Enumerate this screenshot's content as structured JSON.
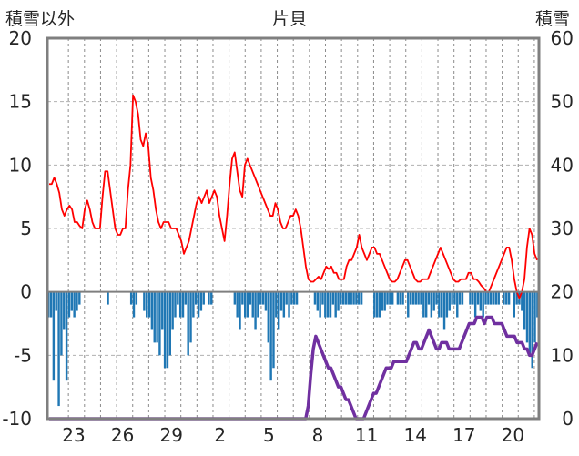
{
  "chart_data": {
    "type": "line",
    "title": "片貝",
    "left_axis_title": "積雪以外",
    "right_axis_title": "積雪",
    "left_ylim": [
      -10,
      20
    ],
    "left_ticks": [
      "-10",
      "-5",
      "0",
      "5",
      "10",
      "15",
      "20"
    ],
    "right_ylim": [
      0,
      60
    ],
    "right_ticks": [
      "0",
      "10",
      "20",
      "30",
      "40",
      "50",
      "60"
    ],
    "x_ticks": [
      "23",
      "26",
      "29",
      "2",
      "5",
      "8",
      "11",
      "14",
      "17",
      "20"
    ],
    "grid": "vertical dashed lines",
    "colors": {
      "temperature": "#ff0000",
      "precipitation": "#1f77b4",
      "snow": "#7030a0",
      "frame": "#7f7f7f"
    },
    "series": [
      {
        "kind": "line",
        "axis": "left",
        "color": "#ff0000",
        "values": [
          8.5,
          8.5,
          9,
          8.5,
          7.8,
          6.5,
          6.0,
          6.5,
          6.8,
          6.5,
          5.5,
          5.5,
          5.2,
          5.0,
          6.5,
          7.2,
          6.5,
          5.5,
          5.0,
          5.0,
          5.0,
          7.5,
          9.5,
          9.5,
          8.0,
          6.5,
          5.0,
          4.5,
          4.5,
          5.0,
          5.0,
          8.0,
          10.0,
          15.5,
          15.0,
          14.0,
          12.0,
          11.5,
          12.5,
          11.5,
          9.0,
          8.0,
          6.5,
          5.5,
          5.0,
          5.5,
          5.5,
          5.5,
          5.0,
          5.0,
          5.0,
          4.5,
          4.0,
          3.0,
          3.5,
          4.0,
          5.0,
          6.0,
          7.0,
          7.5,
          7.0,
          7.5,
          8.0,
          7.0,
          7.5,
          8.0,
          7.5,
          6.0,
          5.0,
          4.0,
          6.0,
          8.5,
          10.5,
          11.0,
          9.5,
          8.0,
          7.5,
          10.0,
          10.5,
          10.0,
          9.5,
          9.0,
          8.5,
          8.0,
          7.5,
          7.0,
          6.5,
          6.0,
          6.0,
          7.0,
          6.5,
          5.5,
          5.0,
          5.0,
          5.5,
          6.0,
          6.0,
          6.5,
          6.0,
          5.0,
          3.5,
          2.0,
          1.0,
          0.8,
          0.8,
          1.0,
          1.2,
          1.0,
          1.5,
          2.0,
          1.8,
          2.0,
          1.5,
          1.5,
          1.0,
          1.0,
          1.0,
          2.0,
          2.5,
          2.5,
          3.0,
          3.5,
          4.5,
          3.5,
          3.0,
          2.5,
          3.0,
          3.5,
          3.5,
          3.0,
          3.0,
          2.5,
          2.0,
          1.5,
          1.0,
          0.8,
          0.8,
          1.0,
          1.5,
          2.0,
          2.5,
          2.5,
          2.0,
          1.5,
          1.0,
          0.8,
          0.8,
          1.0,
          1.0,
          1.0,
          1.5,
          2.0,
          2.5,
          3.0,
          3.5,
          3.0,
          2.5,
          2.0,
          1.5,
          1.0,
          0.8,
          0.8,
          1.0,
          1.0,
          1.0,
          1.5,
          1.5,
          1.0,
          1.0,
          0.8,
          0.5,
          0.3,
          0.0,
          0.0,
          0.5,
          1.0,
          1.5,
          2.0,
          2.5,
          3.0,
          3.5,
          3.5,
          2.5,
          1.0,
          0.0,
          -0.5,
          0.0,
          1.0,
          3.5,
          5.0,
          4.5,
          3.0,
          2.5
        ]
      },
      {
        "kind": "bar",
        "axis": "left",
        "color": "#1f77b4",
        "values": [
          -2,
          -2,
          -7,
          -1.5,
          -9,
          -5,
          -3,
          -7,
          -2,
          -1.5,
          -2,
          -1.5,
          -1,
          0,
          0,
          0,
          0,
          0,
          0,
          0,
          0,
          0,
          0,
          -1,
          0,
          0,
          0,
          0,
          0,
          0,
          0,
          0,
          -1,
          -2,
          -1,
          0,
          0,
          -1.5,
          -2,
          -2,
          -3,
          -4,
          -4,
          -5,
          -3,
          -6,
          -6,
          -5,
          -3,
          -2,
          -1,
          -2,
          -2,
          -1,
          -5,
          -4,
          -2,
          -1,
          -2,
          -1.5,
          -1,
          0,
          -1,
          -1,
          0,
          0,
          0,
          0,
          0,
          0,
          0,
          0,
          -1,
          -2,
          -3,
          -1,
          -2,
          -2,
          -1,
          -2,
          -3,
          -2,
          -1,
          -1,
          -1.5,
          -4,
          -7,
          -6,
          -2,
          -3,
          -1.5,
          -2,
          -1,
          -2,
          -1,
          -1,
          -1,
          0,
          0,
          0,
          0,
          0,
          0,
          -1,
          -1.5,
          -2,
          -1,
          -2,
          -2,
          -2,
          -1,
          -2,
          -1.5,
          -1,
          -1,
          -1,
          -1,
          -1,
          -1,
          -1,
          -1,
          -1,
          0,
          0,
          0,
          0,
          -2,
          -2,
          -2,
          -1.5,
          -1.5,
          -1,
          -1,
          -1,
          0,
          -1,
          -1,
          -1,
          0,
          -2,
          -1,
          -1,
          -1,
          -1,
          -1,
          -2,
          -2,
          -1,
          -2,
          -1.5,
          -1,
          -2,
          -2,
          -3,
          -2,
          -1.5,
          -1,
          -1,
          -2,
          -1,
          -1,
          0,
          0,
          -1,
          -1,
          -2,
          -1,
          -1.5,
          -2,
          -1,
          -1,
          -1,
          -1,
          -1,
          -1,
          0,
          -1,
          -1,
          -1,
          0,
          -2,
          -1,
          -1,
          -1.5,
          -3,
          -4,
          -5,
          -6,
          -4,
          -2
        ]
      },
      {
        "kind": "line",
        "axis": "right",
        "color": "#7030a0",
        "values": [
          0,
          0,
          0,
          0,
          0,
          0,
          0,
          0,
          0,
          0,
          0,
          0,
          0,
          0,
          0,
          0,
          0,
          0,
          0,
          0,
          0,
          0,
          0,
          0,
          0,
          0,
          0,
          0,
          0,
          0,
          0,
          0,
          0,
          0,
          0,
          0,
          0,
          0,
          0,
          0,
          0,
          0,
          0,
          0,
          0,
          0,
          0,
          0,
          0,
          0,
          0,
          0,
          0,
          0,
          0,
          0,
          0,
          0,
          0,
          0,
          0,
          0,
          0,
          0,
          0,
          0,
          0,
          0,
          0,
          0,
          0,
          0,
          0,
          0,
          0,
          0,
          0,
          0,
          0,
          0,
          0,
          0,
          0,
          0,
          0,
          0,
          0,
          0,
          0,
          0,
          0,
          0,
          0,
          0,
          0,
          0,
          0,
          0,
          0,
          0,
          0,
          0,
          0,
          2,
          7,
          11,
          13,
          12,
          11,
          10,
          9,
          8,
          8,
          7,
          6,
          5,
          5,
          4,
          3,
          3,
          2,
          1,
          0,
          0,
          0,
          0,
          1,
          2,
          3,
          4,
          4,
          5,
          6,
          7,
          8,
          8,
          8,
          9,
          9,
          9,
          9,
          9,
          9,
          10,
          11,
          12,
          12,
          11,
          11,
          12,
          13,
          14,
          13,
          12,
          11,
          11,
          12,
          12,
          12,
          11,
          11,
          11,
          11,
          11,
          12,
          13,
          14,
          15,
          15,
          15,
          16,
          16,
          16,
          15,
          16,
          16,
          16,
          15,
          15,
          15,
          15,
          14,
          13,
          13,
          13,
          13,
          12,
          12,
          12,
          11,
          11,
          10,
          10,
          11,
          12
        ]
      }
    ]
  }
}
